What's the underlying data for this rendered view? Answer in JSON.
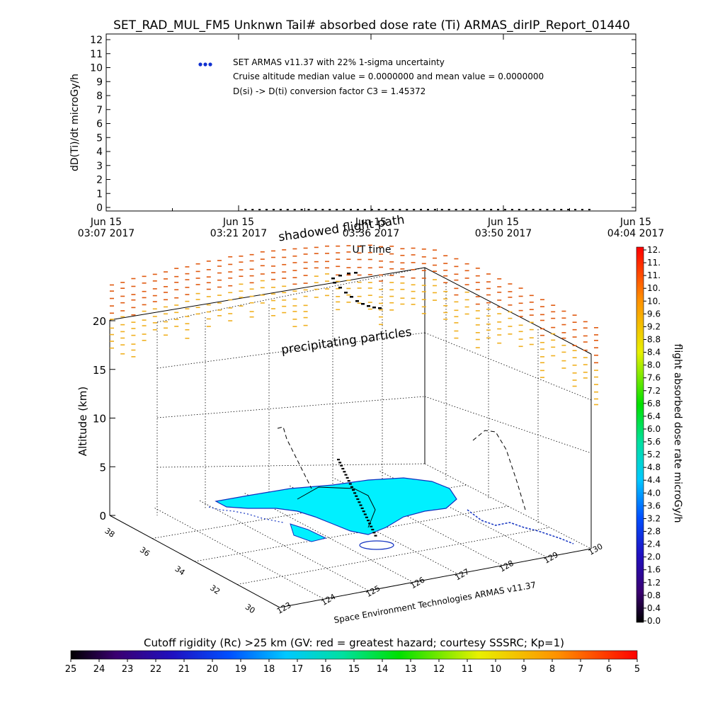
{
  "title": "SET_RAD_MUL_FM5 Unknwn Tail#  absorbed dose rate (Ti) ARMAS_dirIP_Report_01440",
  "colors": {
    "series_marker": "#1030d0",
    "land": "#00f0ff",
    "coast": "#1030c0",
    "orange": "#e05a10",
    "yellow": "#f0b020"
  },
  "chart_data": [
    {
      "type": "scatter",
      "title": "SET_RAD_MUL_FM5 Unknwn Tail#  absorbed dose rate (Ti) ARMAS_dirIP_Report_01440",
      "ylabel": "dD(Ti)/dt microGy/h",
      "xlabel": "UT time",
      "ylim": [
        0,
        12
      ],
      "yticks": [
        "0",
        "1",
        "2",
        "3",
        "4",
        "5",
        "6",
        "7",
        "8",
        "9",
        "10",
        "11",
        "12"
      ],
      "xticks": [
        {
          "date": "Jun 15",
          "time": "03:07 2017"
        },
        {
          "date": "Jun 15",
          "time": "03:21 2017"
        },
        {
          "date": "Jun 15",
          "time": "03:36 2017"
        },
        {
          "date": "Jun 15",
          "time": "03:50 2017"
        },
        {
          "date": "Jun 15",
          "time": "04:04 2017"
        }
      ],
      "legend": [
        "SET ARMAS v11.37 with 22% 1-sigma uncertainty",
        "Cruise altitude median value = 0.0000000 and mean value = 0.0000000",
        "D(si) -> D(ti) conversion factor C3 = 1.45372"
      ],
      "series": [
        {
          "x_start": "03:22",
          "x_end": "03:59",
          "points": 50,
          "value": 0
        }
      ]
    },
    {
      "type": "scatter",
      "title": "",
      "zlabel": "Altitude (km)",
      "zticks": [
        "0",
        "5",
        "10",
        "15",
        "20"
      ],
      "lat_ticks": [
        "30",
        "32",
        "34",
        "36",
        "38"
      ],
      "lon_ticks": [
        "123",
        "124",
        "125",
        "126",
        "127",
        "128",
        "129",
        "130"
      ],
      "annotations": [
        "shadowed flight path",
        "precipitating particles"
      ],
      "credit": "Space Environment Technologies ARMAS v11.37"
    }
  ],
  "colorbar": {
    "label": "flight absorbed dose rate microGy/h",
    "ticks": [
      "12.",
      "11.",
      "11.",
      "10.",
      "10.",
      "9.6",
      "9.2",
      "8.8",
      "8.4",
      "8.0",
      "7.6",
      "7.2",
      "6.8",
      "6.4",
      "6.0",
      "5.6",
      "5.2",
      "4.8",
      "4.4",
      "4.0",
      "3.6",
      "3.2",
      "2.8",
      "2.4",
      "2.0",
      "1.6",
      "1.2",
      "0.8",
      "0.4",
      "0.0"
    ]
  },
  "cutoff_bar": {
    "label": "Cutoff rigidity (Rc) >25 km (GV: red = greatest hazard; courtesy SSSRC; Kp=1)",
    "ticks": [
      "25",
      "24",
      "23",
      "22",
      "21",
      "20",
      "19",
      "18",
      "17",
      "16",
      "15",
      "14",
      "13",
      "12",
      "11",
      "10",
      "9",
      "8",
      "7",
      "6",
      "5"
    ]
  }
}
